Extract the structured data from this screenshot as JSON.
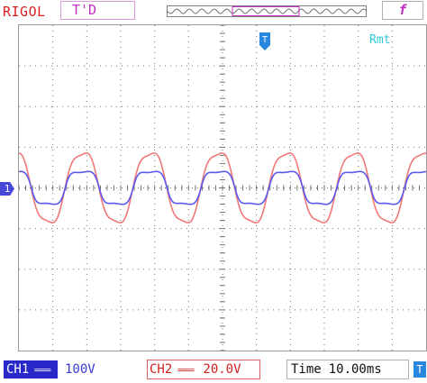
{
  "brand": "RIGOL",
  "acq_mode": "T'D",
  "trigger_edge_symbol": "f",
  "trigger_menu_label": "Rmt",
  "ch1_marker": "1",
  "trigger_marker": "T",
  "status": {
    "ch1_label": "CH1",
    "ch1_scale": "100V",
    "ch2_label": "CH2",
    "ch2_scale": "20.0V",
    "time_label": "Time",
    "time_scale": "10.00ms",
    "time_icon": "T"
  },
  "colors": {
    "ch1": "#5a5af0",
    "ch2": "#f07878",
    "grid": "#707070",
    "brand": "#d82020"
  },
  "chart_data": {
    "type": "line",
    "title": "",
    "xlabel": "",
    "ylabel": "",
    "grid": true,
    "x_divisions": 12,
    "y_divisions": 8,
    "series": [
      {
        "channel": "CH2",
        "color": "#f07878",
        "waveform": "distorted sine",
        "amplitude_div": 1.0,
        "period_div": 2.0,
        "phase_div": -0.63
      },
      {
        "channel": "CH1",
        "color": "#5a5af0",
        "waveform": "square-like sine",
        "amplitude_div": 0.4,
        "period_div": 2.0,
        "phase_div": -0.63
      }
    ]
  }
}
